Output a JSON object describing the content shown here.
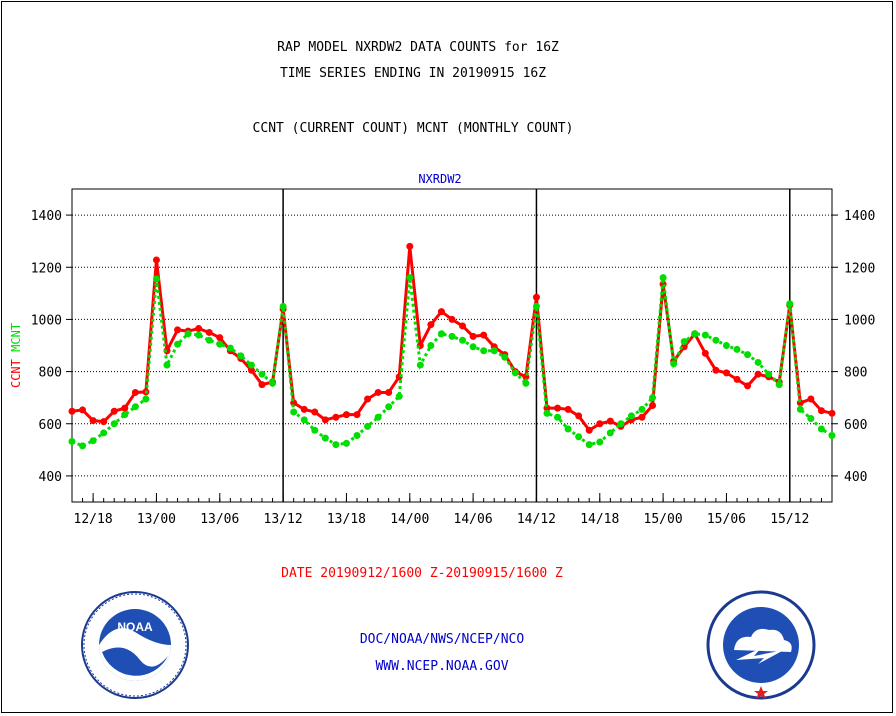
{
  "header": {
    "line1": "RAP MODEL NXRDW2 DATA COUNTS for 16Z",
    "line2": "TIME SERIES ENDING IN 20190915 16Z",
    "line3": "CCNT (CURRENT COUNT) MCNT (MONTHLY COUNT)"
  },
  "footer": {
    "date_range": "DATE 20190912/1600 Z-20190915/1600 Z",
    "org": "DOC/NOAA/NWS/NCEP/NCO",
    "url": "WWW.NCEP.NOAA.GOV"
  },
  "logos": {
    "left": {
      "text": "NOAA",
      "icon": "noaa-logo-icon"
    },
    "right": {
      "icon": "nws-logo-icon"
    }
  },
  "chart_data": {
    "type": "line",
    "title": "NXRDW2",
    "ylabel_parts": [
      {
        "text": "CCNT",
        "color": "#ff0000"
      },
      {
        "text": "MCNT",
        "color": "#00dd00"
      }
    ],
    "ylim": [
      300,
      1500
    ],
    "yticks": [
      400,
      600,
      800,
      1000,
      1200,
      1400
    ],
    "xlim": [
      0,
      72
    ],
    "xticks": [
      {
        "x": 2,
        "label": "12/18"
      },
      {
        "x": 8,
        "label": "13/00"
      },
      {
        "x": 14,
        "label": "13/06"
      },
      {
        "x": 20,
        "label": "13/12"
      },
      {
        "x": 26,
        "label": "13/18"
      },
      {
        "x": 32,
        "label": "14/00"
      },
      {
        "x": 38,
        "label": "14/06"
      },
      {
        "x": 44,
        "label": "14/12"
      },
      {
        "x": 50,
        "label": "14/18"
      },
      {
        "x": 56,
        "label": "15/00"
      },
      {
        "x": 62,
        "label": "15/06"
      },
      {
        "x": 68,
        "label": "15/12"
      }
    ],
    "day_lines_x": [
      20,
      44,
      68
    ],
    "grid": true,
    "series": [
      {
        "name": "CCNT",
        "color": "#ff0000",
        "values": [
          648,
          653,
          612,
          608,
          648,
          660,
          720,
          722,
          1228,
          880,
          960,
          955,
          965,
          950,
          930,
          880,
          850,
          805,
          750,
          760,
          1040,
          680,
          655,
          645,
          615,
          625,
          635,
          635,
          695,
          720,
          720,
          780,
          1280,
          900,
          980,
          1030,
          1000,
          975,
          935,
          940,
          895,
          865,
          800,
          780,
          1085,
          660,
          660,
          655,
          630,
          575,
          600,
          610,
          590,
          615,
          625,
          670,
          1135,
          840,
          895,
          945,
          870,
          805,
          795,
          770,
          745,
          790,
          780,
          760,
          1055,
          680,
          695,
          650,
          640
        ]
      },
      {
        "name": "MCNT",
        "color": "#00dd00",
        "values": [
          532,
          515,
          535,
          565,
          600,
          635,
          665,
          695,
          1155,
          825,
          905,
          945,
          940,
          920,
          905,
          890,
          860,
          825,
          790,
          755,
          1050,
          645,
          615,
          575,
          545,
          520,
          525,
          555,
          590,
          625,
          665,
          705,
          1160,
          825,
          900,
          945,
          935,
          920,
          895,
          880,
          880,
          855,
          795,
          755,
          1050,
          640,
          625,
          580,
          550,
          520,
          530,
          565,
          600,
          630,
          655,
          700,
          1160,
          830,
          915,
          945,
          940,
          920,
          900,
          885,
          865,
          835,
          790,
          750,
          1060,
          655,
          620,
          580,
          555
        ]
      }
    ]
  }
}
